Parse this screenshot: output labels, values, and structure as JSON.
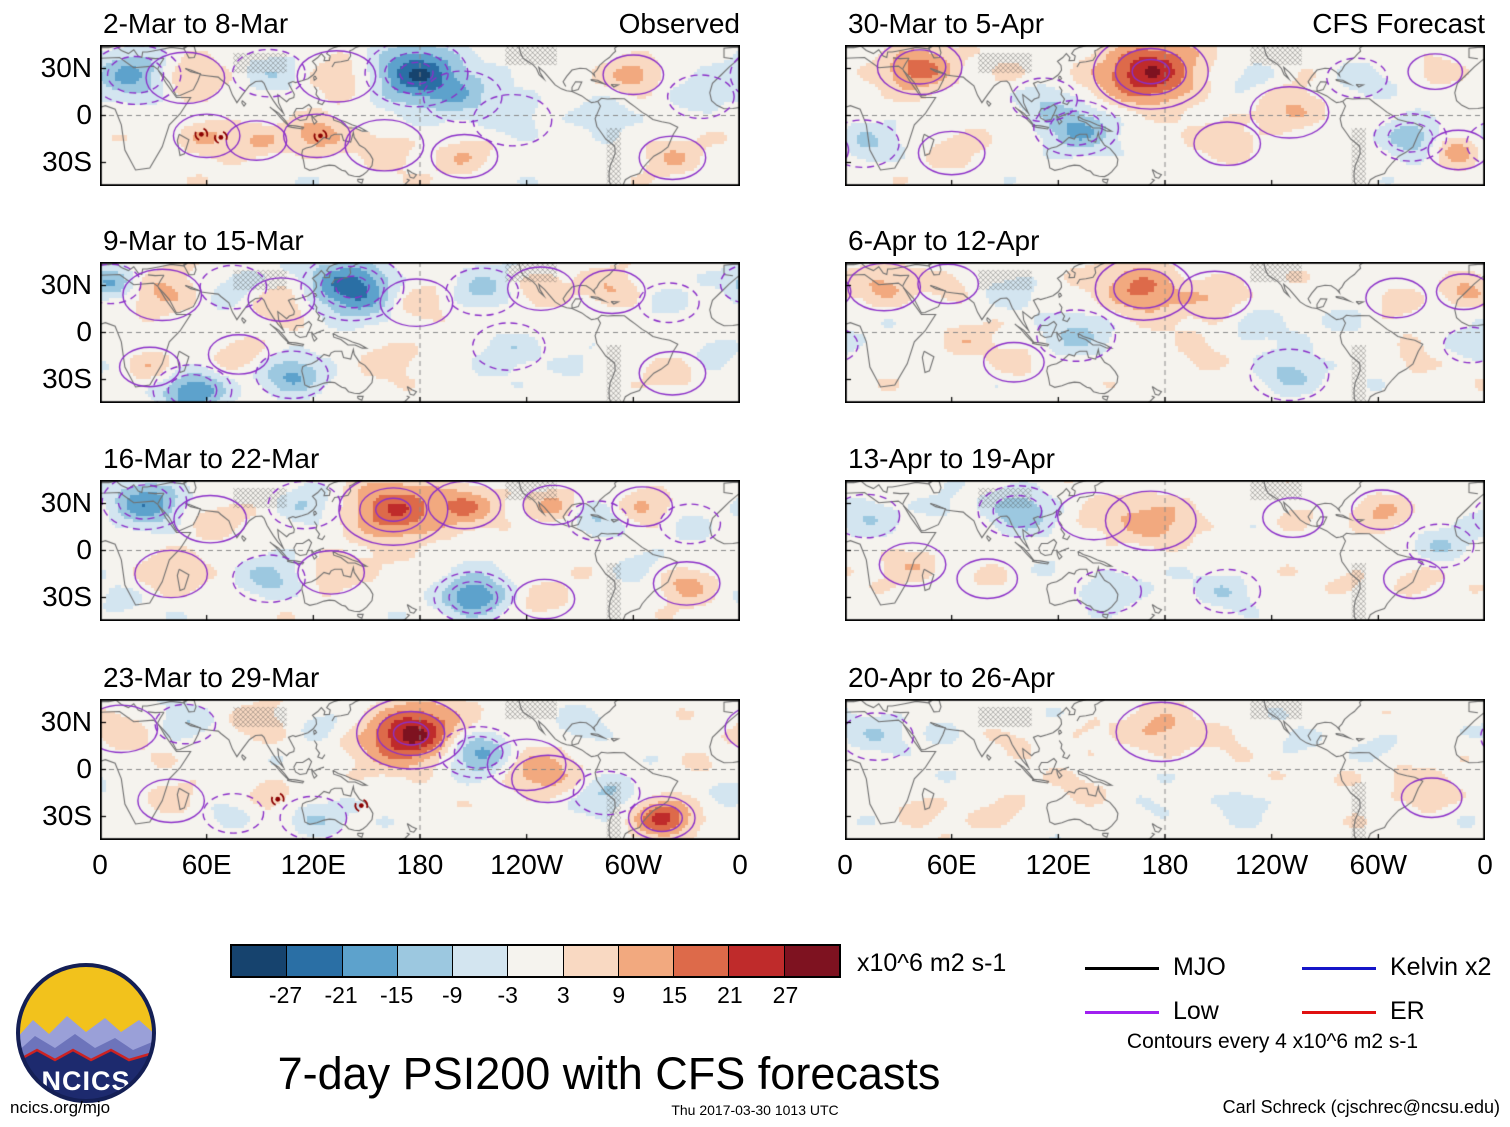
{
  "title": "7-day PSI200 with CFS forecasts",
  "logo_text": "NCICS",
  "columns": {
    "left_header": "Observed",
    "right_header": "CFS Forecast"
  },
  "axes": {
    "lat_ticks": [
      "30N",
      "0",
      "30S"
    ],
    "lat_values": [
      30,
      0,
      -30
    ],
    "lon_ticks": [
      "0",
      "60E",
      "120E",
      "180",
      "120W",
      "60W",
      "0"
    ],
    "lon_values": [
      0,
      60,
      120,
      180,
      240,
      300,
      360
    ]
  },
  "colorbar": {
    "colors": [
      "#16436e",
      "#2a6fa5",
      "#5da2cc",
      "#9cc8e0",
      "#d3e5f0",
      "#f5f3ee",
      "#f9d9c2",
      "#f2a97f",
      "#dd6a4a",
      "#bf2b2b",
      "#7e1220"
    ],
    "tick_labels": [
      "-27",
      "-21",
      "-15",
      "-9",
      "-3",
      "3",
      "9",
      "15",
      "21",
      "27"
    ],
    "unit": "x10^6 m2 s-1"
  },
  "legend": {
    "items": [
      {
        "label": "MJO",
        "color": "#000000"
      },
      {
        "label": "Kelvin x2",
        "color": "#1515c8"
      },
      {
        "label": "Low",
        "color": "#a020f0"
      },
      {
        "label": "ER",
        "color": "#e01010"
      }
    ],
    "note": "Contours every 4 x10^6 m2 s-1"
  },
  "footer": {
    "left": "ncics.org/mjo",
    "center": "Thu 2017-03-30 1013 UTC",
    "right": "Carl Schreck (cjschrec@ncsu.edu)"
  },
  "chart_data": {
    "type": "heatmap",
    "subtype": "filled_contour_anomaly_world_maps",
    "lon_range": [
      0,
      360
    ],
    "lat_range": [
      -45,
      45
    ],
    "fill_levels": [
      -27,
      -21,
      -15,
      -9,
      -3,
      3,
      9,
      15,
      21,
      27
    ],
    "fill_unit": "x10^6 m2 s-1",
    "contour_interval": "4 x10^6 m2 s-1",
    "features_format": "[lon_deg, lat_deg, radius_deg, amplitude_x10^6_m2_s-1]",
    "panels": [
      {
        "title": "2-Mar to 8-Mar",
        "group": "Observed",
        "features": [
          [
            20,
            26,
            15,
            -16
          ],
          [
            48,
            24,
            13,
            9
          ],
          [
            95,
            27,
            12,
            -7
          ],
          [
            133,
            25,
            13,
            10
          ],
          [
            178,
            27,
            17,
            -29
          ],
          [
            204,
            12,
            13,
            -10
          ],
          [
            232,
            -3,
            13,
            -9
          ],
          [
            300,
            26,
            10,
            11
          ],
          [
            338,
            12,
            11,
            -8
          ],
          [
            282,
            3,
            10,
            -6
          ],
          [
            60,
            -13,
            11,
            12
          ],
          [
            88,
            -16,
            10,
            9
          ],
          [
            122,
            -13,
            11,
            11
          ],
          [
            160,
            -19,
            13,
            7
          ],
          [
            205,
            -26,
            11,
            9
          ],
          [
            322,
            -27,
            11,
            10
          ]
        ],
        "cyclones": [
          [
            57,
            -12
          ],
          [
            68,
            -14
          ],
          [
            124,
            -13
          ]
        ]
      },
      {
        "title": "9-Mar to 15-Mar",
        "group": "Observed",
        "features": [
          [
            6,
            31,
            10,
            -14
          ],
          [
            35,
            24,
            13,
            11
          ],
          [
            75,
            29,
            11,
            -7
          ],
          [
            102,
            21,
            11,
            9
          ],
          [
            142,
            29,
            17,
            -25
          ],
          [
            178,
            19,
            12,
            10
          ],
          [
            215,
            26,
            12,
            -11
          ],
          [
            248,
            28,
            11,
            8
          ],
          [
            288,
            26,
            11,
            9
          ],
          [
            320,
            19,
            10,
            -7
          ],
          [
            28,
            -22,
            10,
            8
          ],
          [
            52,
            -37,
            13,
            -22
          ],
          [
            78,
            -14,
            10,
            8
          ],
          [
            108,
            -27,
            12,
            -14
          ],
          [
            162,
            -15,
            11,
            6
          ],
          [
            230,
            -9,
            12,
            -8
          ],
          [
            270,
            -22,
            11,
            -6
          ],
          [
            322,
            -26,
            11,
            9
          ],
          [
            345,
            -10,
            10,
            -6
          ]
        ],
        "cyclones": []
      },
      {
        "title": "16-Mar to 22-Mar",
        "group": "Observed",
        "features": [
          [
            25,
            31,
            14,
            -19
          ],
          [
            62,
            20,
            12,
            8
          ],
          [
            115,
            29,
            12,
            -11
          ],
          [
            165,
            26,
            18,
            23
          ],
          [
            205,
            29,
            12,
            13
          ],
          [
            255,
            29,
            10,
            12
          ],
          [
            280,
            19,
            10,
            -8
          ],
          [
            305,
            28,
            10,
            10
          ],
          [
            332,
            17,
            10,
            -8
          ],
          [
            40,
            -15,
            12,
            8
          ],
          [
            10,
            -31,
            10,
            -6
          ],
          [
            95,
            -18,
            12,
            -10
          ],
          [
            130,
            -14,
            11,
            8
          ],
          [
            210,
            -30,
            13,
            -21
          ],
          [
            250,
            -31,
            10,
            8
          ],
          [
            300,
            -11,
            10,
            -6
          ],
          [
            330,
            -21,
            11,
            13
          ]
        ],
        "cyclones": []
      },
      {
        "title": "23-Mar to 29-Mar",
        "group": "Observed",
        "features": [
          [
            12,
            26,
            12,
            8
          ],
          [
            48,
            29,
            10,
            -8
          ],
          [
            90,
            26,
            12,
            6
          ],
          [
            122,
            29,
            10,
            -6
          ],
          [
            175,
            23,
            18,
            29
          ],
          [
            213,
            11,
            13,
            -17
          ],
          [
            240,
            3,
            13,
            8
          ],
          [
            272,
            26,
            10,
            -6
          ],
          [
            40,
            -20,
            11,
            8
          ],
          [
            75,
            -28,
            10,
            -7
          ],
          [
            95,
            -16,
            10,
            6
          ],
          [
            120,
            -31,
            11,
            -9
          ],
          [
            252,
            -6,
            12,
            8
          ],
          [
            285,
            -15,
            11,
            -10
          ],
          [
            316,
            -31,
            11,
            21
          ],
          [
            336,
            4,
            10,
            6
          ],
          [
            352,
            -12,
            9,
            -6
          ]
        ],
        "cyclones": [
          [
            100,
            -19
          ],
          [
            147,
            -23
          ]
        ]
      },
      {
        "title": "30-Mar to 5-Apr",
        "group": "CFS Forecast",
        "features": [
          [
            42,
            31,
            14,
            17
          ],
          [
            90,
            26,
            11,
            6
          ],
          [
            130,
            -8,
            14,
            -15
          ],
          [
            112,
            10,
            11,
            -8
          ],
          [
            172,
            28,
            19,
            27
          ],
          [
            215,
            -18,
            11,
            7
          ],
          [
            250,
            2,
            13,
            10
          ],
          [
            288,
            24,
            10,
            -7
          ],
          [
            10,
            -18,
            12,
            -9
          ],
          [
            60,
            -24,
            11,
            7
          ],
          [
            318,
            -14,
            12,
            -16
          ],
          [
            345,
            -22,
            10,
            14
          ],
          [
            332,
            28,
            9,
            8
          ],
          [
            230,
            25,
            10,
            -6
          ]
        ],
        "cyclones": []
      },
      {
        "title": "6-Apr to 12-Apr",
        "group": "CFS Forecast",
        "features": [
          [
            22,
            29,
            12,
            9
          ],
          [
            58,
            31,
            10,
            7
          ],
          [
            95,
            24,
            11,
            -6
          ],
          [
            130,
            -2,
            13,
            -9
          ],
          [
            168,
            28,
            16,
            17
          ],
          [
            208,
            24,
            12,
            9
          ],
          [
            250,
            -27,
            13,
            -13
          ],
          [
            285,
            8,
            10,
            -6
          ],
          [
            310,
            22,
            10,
            7
          ],
          [
            348,
            26,
            9,
            10
          ],
          [
            352,
            -8,
            9,
            -7
          ],
          [
            68,
            -6,
            10,
            6
          ],
          [
            95,
            -19,
            10,
            7
          ],
          [
            200,
            -18,
            10,
            6
          ],
          [
            230,
            5,
            10,
            -6
          ],
          [
            320,
            -20,
            10,
            6
          ]
        ],
        "cyclones": []
      },
      {
        "title": "13-Apr to 19-Apr",
        "group": "CFS Forecast",
        "features": [
          [
            12,
            22,
            11,
            -7
          ],
          [
            55,
            28,
            10,
            -6
          ],
          [
            97,
            25,
            13,
            -15
          ],
          [
            140,
            22,
            12,
            7
          ],
          [
            172,
            19,
            15,
            11
          ],
          [
            252,
            21,
            10,
            7
          ],
          [
            302,
            26,
            10,
            9
          ],
          [
            335,
            3,
            11,
            -9
          ],
          [
            38,
            -9,
            11,
            8
          ],
          [
            80,
            -18,
            10,
            7
          ],
          [
            118,
            -12,
            10,
            -6
          ],
          [
            148,
            -26,
            11,
            -10
          ],
          [
            215,
            -26,
            11,
            -9
          ],
          [
            285,
            -20,
            10,
            6
          ],
          [
            320,
            -18,
            10,
            7
          ]
        ],
        "cyclones": []
      },
      {
        "title": "20-Apr to 26-Apr",
        "group": "CFS Forecast",
        "features": [
          [
            18,
            21,
            12,
            -8
          ],
          [
            55,
            26,
            10,
            -6
          ],
          [
            95,
            20,
            10,
            5
          ],
          [
            135,
            25,
            10,
            5
          ],
          [
            178,
            24,
            15,
            9
          ],
          [
            215,
            22,
            10,
            5
          ],
          [
            255,
            18,
            10,
            -5
          ],
          [
            300,
            14,
            10,
            -5
          ],
          [
            330,
            -18,
            10,
            7
          ],
          [
            40,
            -25,
            10,
            5
          ],
          [
            90,
            -27,
            10,
            6
          ],
          [
            135,
            -15,
            10,
            5
          ],
          [
            175,
            -25,
            10,
            -5
          ],
          [
            222,
            -20,
            10,
            -6
          ],
          [
            280,
            -5,
            10,
            5
          ],
          [
            310,
            -3,
            10,
            6
          ]
        ],
        "cyclones": []
      }
    ]
  }
}
